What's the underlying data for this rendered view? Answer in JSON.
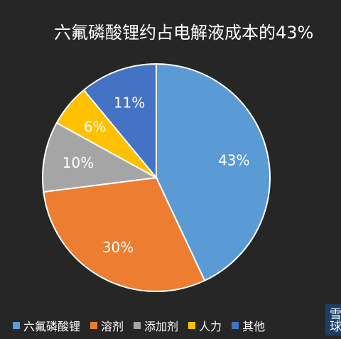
{
  "chart_data": {
    "type": "pie",
    "title": "六氟磷酸锂约占电解液成本的43%",
    "categories": [
      "六氟磷酸锂",
      "溶剂",
      "添加剂",
      "人力",
      "其他"
    ],
    "values": [
      43,
      30,
      10,
      6,
      11
    ],
    "value_labels": [
      "43%",
      "30%",
      "10%",
      "6%",
      "11%"
    ],
    "colors": [
      "#5b9bd5",
      "#ed7d31",
      "#a5a5a5",
      "#ffc000",
      "#4472c4"
    ],
    "start_angle": "12 o'clock",
    "direction": "clockwise",
    "legend_position": "bottom"
  },
  "watermark": "雪球"
}
